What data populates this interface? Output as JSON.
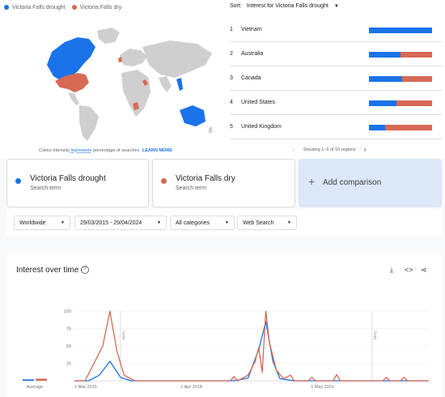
{
  "legend_top": {
    "term1": "Victoria Falls drought",
    "term2": "Victoria Falls dry",
    "color1": "#1a73e8",
    "color2": "#d76955"
  },
  "map": {
    "caption_prefix": "Colour intensity",
    "caption_link": "represents",
    "caption_suffix": "percentage of searches",
    "learn_more": "LEARN MORE"
  },
  "regions": {
    "sort_label": "Sort:",
    "sort_value": "Interest for Victoria Falls drought",
    "rows": [
      {
        "rank": "1",
        "name": "Vietnam",
        "share": 1.0
      },
      {
        "rank": "2",
        "name": "Australia",
        "share": 0.5
      },
      {
        "rank": "3",
        "name": "Canada",
        "share": 0.52
      },
      {
        "rank": "4",
        "name": "United States",
        "share": 0.44
      },
      {
        "rank": "5",
        "name": "United Kingdom",
        "share": 0.26
      }
    ],
    "pager": "Showing 1–5 of 16 regions"
  },
  "terms": [
    {
      "name": "Victoria Falls drought",
      "sub": "Search term",
      "color": "#1a73e8"
    },
    {
      "name": "Victoria Falls dry",
      "sub": "Search term",
      "color": "#d76955"
    }
  ],
  "add_comparison": "Add comparison",
  "filters": {
    "region": "Worldwide",
    "dates": "29/03/2015 - 29/04/2024",
    "category": "All categories",
    "search_type": "Web Search"
  },
  "iot": {
    "title": "Interest over time",
    "average_label": "Average"
  },
  "chart_data": {
    "type": "line",
    "x_tick_labels": [
      "1 Mar 2015",
      "1 Apr 2018",
      "1 May 2021"
    ],
    "y_tick_labels": [
      "100",
      "75",
      "50",
      "25"
    ],
    "ylim": [
      0,
      100
    ],
    "notes": [
      "Note",
      "Note"
    ],
    "averages": [
      2,
      3
    ],
    "series": [
      {
        "color": "#1a73e8",
        "points": [
          [
            0,
            0
          ],
          [
            4,
            0
          ],
          [
            7,
            8
          ],
          [
            10,
            28
          ],
          [
            13,
            5
          ],
          [
            16,
            0
          ],
          [
            45,
            0
          ],
          [
            49,
            4
          ],
          [
            52,
            45
          ],
          [
            54,
            85
          ],
          [
            56,
            28
          ],
          [
            58,
            3
          ],
          [
            62,
            0
          ],
          [
            100,
            0
          ]
        ]
      },
      {
        "color": "#d76955",
        "points": [
          [
            0,
            0
          ],
          [
            3,
            0
          ],
          [
            5,
            20
          ],
          [
            8,
            50
          ],
          [
            10,
            100
          ],
          [
            12,
            42
          ],
          [
            14,
            8
          ],
          [
            17,
            0
          ],
          [
            44,
            0
          ],
          [
            45,
            6
          ],
          [
            46,
            0
          ],
          [
            49,
            8
          ],
          [
            51,
            28
          ],
          [
            52,
            48
          ],
          [
            53,
            12
          ],
          [
            54,
            100
          ],
          [
            55,
            55
          ],
          [
            57,
            15
          ],
          [
            59,
            3
          ],
          [
            61,
            8
          ],
          [
            62,
            0
          ],
          [
            66,
            0
          ],
          [
            67,
            5
          ],
          [
            68,
            0
          ],
          [
            73,
            0
          ],
          [
            74,
            9
          ],
          [
            75,
            0
          ],
          [
            87,
            0
          ],
          [
            88,
            5
          ],
          [
            89,
            0
          ],
          [
            92,
            0
          ],
          [
            93,
            5
          ],
          [
            94,
            0
          ],
          [
            100,
            0
          ]
        ]
      }
    ]
  }
}
